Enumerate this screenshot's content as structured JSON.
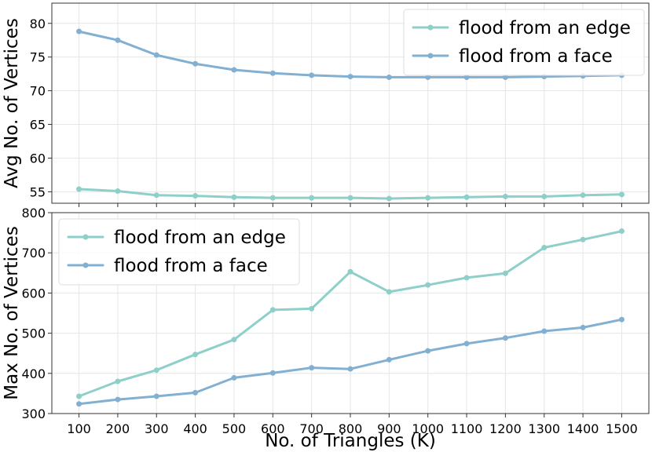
{
  "chart_data": [
    {
      "type": "line",
      "title": "",
      "xlabel": "",
      "ylabel": "Avg No. of Vertices",
      "x": [
        100,
        200,
        300,
        400,
        500,
        600,
        700,
        800,
        900,
        1000,
        1100,
        1200,
        1300,
        1400,
        1500
      ],
      "xticklabels": [
        "100",
        "200",
        "300",
        "400",
        "500",
        "600",
        "700",
        "800",
        "900",
        "1000",
        "1100",
        "1200",
        "1300",
        "1400",
        "1500"
      ],
      "xlim": [
        -0.7,
        14.7
      ],
      "ylim": [
        53.3,
        83.0
      ],
      "yticks": [
        55,
        60,
        65,
        70,
        75,
        80
      ],
      "yticklabels": [
        "55",
        "60",
        "65",
        "70",
        "75",
        "80"
      ],
      "grid": true,
      "legend_position": "upper right",
      "series": [
        {
          "name": "flood from an edge",
          "color": "#8ECFC9",
          "values": [
            55.4,
            55.1,
            54.5,
            54.4,
            54.2,
            54.1,
            54.1,
            54.1,
            54.0,
            54.1,
            54.2,
            54.3,
            54.3,
            54.5,
            54.6
          ]
        },
        {
          "name": "flood from a face",
          "color": "#82B0D2",
          "values": [
            78.8,
            77.5,
            75.3,
            74.0,
            73.1,
            72.6,
            72.3,
            72.1,
            72.0,
            72.0,
            72.0,
            72.0,
            72.1,
            72.2,
            72.3
          ]
        }
      ]
    },
    {
      "type": "line",
      "title": "",
      "xlabel": "No. of Triangles (K)",
      "ylabel": "Max No. of Vertices",
      "x": [
        100,
        200,
        300,
        400,
        500,
        600,
        700,
        800,
        900,
        1000,
        1100,
        1200,
        1300,
        1400,
        1500
      ],
      "xticklabels": [
        "100",
        "200",
        "300",
        "400",
        "500",
        "600",
        "700",
        "800",
        "900",
        "1000",
        "1100",
        "1200",
        "1300",
        "1400",
        "1500"
      ],
      "xlim": [
        -0.7,
        14.7
      ],
      "ylim": [
        300,
        800
      ],
      "yticks": [
        300,
        400,
        500,
        600,
        700,
        800
      ],
      "yticklabels": [
        "300",
        "400",
        "500",
        "600",
        "700",
        "800"
      ],
      "grid": true,
      "legend_position": "upper left",
      "series": [
        {
          "name": "flood from an edge",
          "color": "#8ECFC9",
          "values": [
            343,
            380,
            408,
            447,
            484,
            558,
            561,
            653,
            603,
            620,
            638,
            649,
            713,
            733,
            754
          ]
        },
        {
          "name": "flood from a face",
          "color": "#82B0D2",
          "values": [
            324,
            335,
            343,
            352,
            389,
            401,
            414,
            411,
            434,
            456,
            474,
            488,
            505,
            514,
            534
          ]
        }
      ]
    }
  ]
}
